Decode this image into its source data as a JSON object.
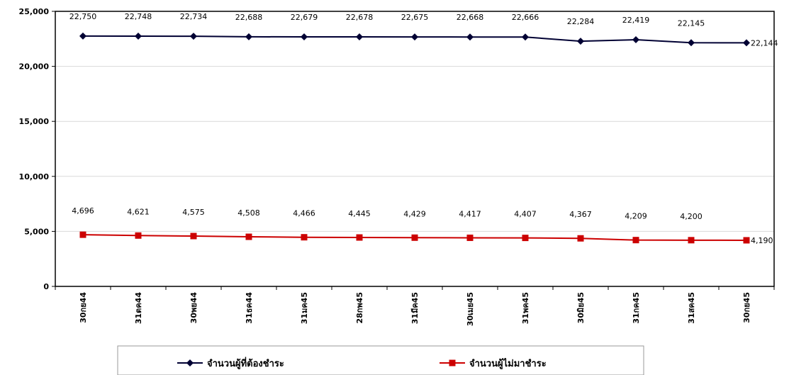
{
  "chart_data": {
    "type": "line",
    "categories": [
      "30กย44",
      "31ตค44",
      "30พย44",
      "31ธค44",
      "31มค45",
      "28กพ45",
      "31มีค45",
      "30เมย45",
      "31พค45",
      "30มิย45",
      "31กค45",
      "31สค45",
      "30กย45"
    ],
    "series": [
      {
        "name": "จำนวนผู้ที่ต้องชำระ",
        "color": "#000033",
        "marker": "diamond",
        "values": [
          22750,
          22748,
          22734,
          22688,
          22679,
          22678,
          22675,
          22668,
          22666,
          22284,
          22419,
          22145,
          22144
        ],
        "labels": [
          "22,750",
          "22,748",
          "22,734",
          "22,688",
          "22,679",
          "22,678",
          "22,675",
          "22,668",
          "22,666",
          "22,284",
          "22,419",
          "22,145",
          "22,144"
        ]
      },
      {
        "name": "จำนวนผู้ไม่มาชำระ",
        "color": "#cc0000",
        "marker": "square",
        "values": [
          4696,
          4621,
          4575,
          4508,
          4466,
          4445,
          4429,
          4417,
          4407,
          4367,
          4209,
          4200,
          4190
        ],
        "labels": [
          "4,696",
          "4,621",
          "4,575",
          "4,508",
          "4,466",
          "4,445",
          "4,429",
          "4,417",
          "4,407",
          "4,367",
          "4,209",
          "4,200",
          "4,190"
        ]
      }
    ],
    "y_ticks": [
      "0",
      "5,000",
      "10,000",
      "15,000",
      "20,000",
      "25,000"
    ],
    "y_tick_values": [
      0,
      5000,
      10000,
      15000,
      20000,
      25000
    ],
    "ylim": [
      0,
      25000
    ],
    "grid": true,
    "legend_position": "bottom"
  }
}
